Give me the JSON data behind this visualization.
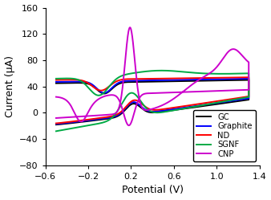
{
  "title": "",
  "xlabel": "Potential (V)",
  "ylabel": "Current (μA)",
  "xlim": [
    -0.6,
    1.4
  ],
  "ylim": [
    -80,
    160
  ],
  "xticks": [
    -0.6,
    -0.2,
    0.2,
    0.6,
    1.0,
    1.4
  ],
  "yticks": [
    -80,
    -40,
    0,
    40,
    80,
    120,
    160
  ],
  "legend_labels": [
    "GC",
    "Graphite",
    "ND",
    "SGNF",
    "CNP"
  ],
  "line_colors": [
    "#000000",
    "#0000ff",
    "#ff0000",
    "#00aa44",
    "#cc00cc"
  ],
  "line_widths": [
    1.4,
    1.4,
    1.4,
    1.4,
    1.4
  ],
  "background_color": "#ffffff"
}
